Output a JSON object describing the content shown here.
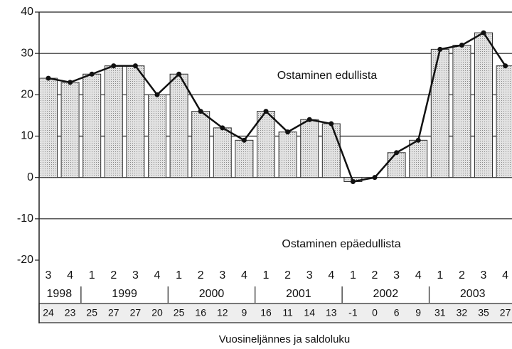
{
  "chart_data": {
    "type": "bar_line",
    "groups": [
      {
        "label": "1998",
        "quarters": [
          "3",
          "4"
        ]
      },
      {
        "label": "1999",
        "quarters": [
          "1",
          "2",
          "3",
          "4"
        ]
      },
      {
        "label": "2000",
        "quarters": [
          "1",
          "2",
          "3",
          "4"
        ]
      },
      {
        "label": "2001",
        "quarters": [
          "1",
          "2",
          "3",
          "4"
        ]
      },
      {
        "label": "2002",
        "quarters": [
          "1",
          "2",
          "3",
          "4"
        ]
      },
      {
        "label": "2003",
        "quarters": [
          "1",
          "2",
          "3",
          "4"
        ]
      }
    ],
    "values": [
      24,
      23,
      25,
      27,
      27,
      20,
      25,
      16,
      12,
      9,
      16,
      11,
      14,
      13,
      -1,
      0,
      6,
      9,
      31,
      32,
      35,
      27
    ],
    "bar_color": "#cfcfcf",
    "line_color": "#111111",
    "ylim": [
      -20,
      40
    ],
    "yticks": [
      -20,
      -10,
      0,
      10,
      20,
      30,
      40
    ],
    "grid": true,
    "annotations": [
      "Ostaminen edullista",
      "Ostaminen epäedullista"
    ],
    "xlabel": "Vuosineljännes ja saldoluku"
  }
}
